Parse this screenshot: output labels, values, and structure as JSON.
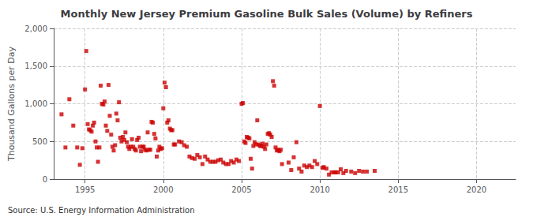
{
  "chart_data": {
    "type": "scatter",
    "title": "Monthly New Jersey Premium Gasoline Bulk Sales (Volume) by Refiners",
    "ylabel": "Thousand Gallons per Day",
    "annotations": [
      "Source: U.S. Energy Information Administration"
    ],
    "color": "#cc0000",
    "marker": "square",
    "grid": true,
    "xlim": [
      1993.0,
      2022.5
    ],
    "ylim": [
      0,
      2000
    ],
    "xticks": [
      1995,
      2000,
      2005,
      2010,
      2015,
      2020
    ],
    "yticks": [
      0,
      500,
      {
        "value": 1000,
        "label": "1,000"
      },
      {
        "value": 1500,
        "label": "1,500"
      },
      {
        "value": 2000,
        "label": "2,000"
      }
    ],
    "x": [
      1993.5,
      1993.75,
      1994.0,
      1994.25,
      1994.5,
      1994.67,
      1994.83,
      1995.0,
      1995.08,
      1995.17,
      1995.25,
      1995.33,
      1995.42,
      1995.5,
      1995.58,
      1995.67,
      1995.75,
      1995.83,
      1995.92,
      1996.0,
      1996.08,
      1996.17,
      1996.25,
      1996.33,
      1996.42,
      1996.5,
      1996.58,
      1996.67,
      1996.75,
      1996.83,
      1996.92,
      1997.0,
      1997.08,
      1997.17,
      1997.25,
      1997.33,
      1997.42,
      1997.5,
      1997.58,
      1997.67,
      1997.75,
      1997.83,
      1997.92,
      1998.0,
      1998.08,
      1998.17,
      1998.25,
      1998.33,
      1998.42,
      1998.5,
      1998.58,
      1998.67,
      1998.75,
      1998.83,
      1998.92,
      1999.0,
      1999.08,
      1999.17,
      1999.25,
      1999.33,
      1999.42,
      1999.5,
      1999.58,
      1999.67,
      1999.75,
      1999.83,
      1999.92,
      2000.0,
      2000.08,
      2000.17,
      2000.25,
      2000.33,
      2000.42,
      2000.5,
      2000.58,
      2000.67,
      2000.75,
      2001.0,
      2001.17,
      2001.33,
      2001.5,
      2001.67,
      2001.83,
      2002.0,
      2002.17,
      2002.33,
      2002.5,
      2002.67,
      2002.83,
      2003.0,
      2003.17,
      2003.33,
      2003.5,
      2003.67,
      2003.83,
      2004.0,
      2004.17,
      2004.33,
      2004.5,
      2004.67,
      2004.83,
      2005.0,
      2005.08,
      2005.17,
      2005.25,
      2005.33,
      2005.42,
      2005.5,
      2005.58,
      2005.67,
      2005.75,
      2005.83,
      2005.92,
      2006.0,
      2006.08,
      2006.17,
      2006.25,
      2006.33,
      2006.42,
      2006.5,
      2006.58,
      2006.67,
      2006.75,
      2006.83,
      2006.92,
      2007.0,
      2007.08,
      2007.17,
      2007.25,
      2007.33,
      2007.42,
      2007.5,
      2007.58,
      2008.0,
      2008.17,
      2008.33,
      2008.5,
      2008.67,
      2008.83,
      2009.0,
      2009.17,
      2009.33,
      2009.5,
      2009.67,
      2009.83,
      2010.0,
      2010.17,
      2010.25,
      2010.42,
      2010.58,
      2010.75,
      2010.92,
      2011.0,
      2011.17,
      2011.33,
      2011.5,
      2011.67,
      2012.0,
      2012.25,
      2012.5,
      2012.75,
      2013.0,
      2013.5
    ],
    "values": [
      860,
      420,
      1060,
      710,
      420,
      190,
      410,
      1190,
      1700,
      730,
      660,
      650,
      630,
      710,
      750,
      500,
      420,
      230,
      420,
      1240,
      1000,
      990,
      1030,
      710,
      640,
      1250,
      840,
      590,
      430,
      380,
      450,
      870,
      780,
      1020,
      550,
      500,
      560,
      520,
      620,
      490,
      430,
      400,
      430,
      530,
      430,
      400,
      380,
      520,
      550,
      430,
      370,
      430,
      430,
      390,
      380,
      620,
      390,
      390,
      760,
      750,
      600,
      540,
      300,
      380,
      430,
      400,
      410,
      940,
      1280,
      1220,
      750,
      780,
      670,
      650,
      650,
      460,
      460,
      500,
      490,
      450,
      430,
      300,
      280,
      270,
      320,
      290,
      200,
      300,
      260,
      230,
      230,
      230,
      250,
      260,
      220,
      200,
      200,
      240,
      220,
      260,
      240,
      1000,
      1010,
      500,
      480,
      560,
      550,
      540,
      270,
      140,
      440,
      490,
      460,
      780,
      460,
      440,
      440,
      470,
      430,
      400,
      460,
      600,
      610,
      590,
      560,
      1300,
      1240,
      420,
      380,
      390,
      370,
      390,
      200,
      220,
      120,
      290,
      490,
      140,
      100,
      180,
      160,
      180,
      160,
      240,
      200,
      970,
      150,
      160,
      140,
      60,
      90,
      90,
      90,
      90,
      130,
      80,
      110,
      100,
      80,
      110,
      100,
      100,
      110
    ]
  }
}
